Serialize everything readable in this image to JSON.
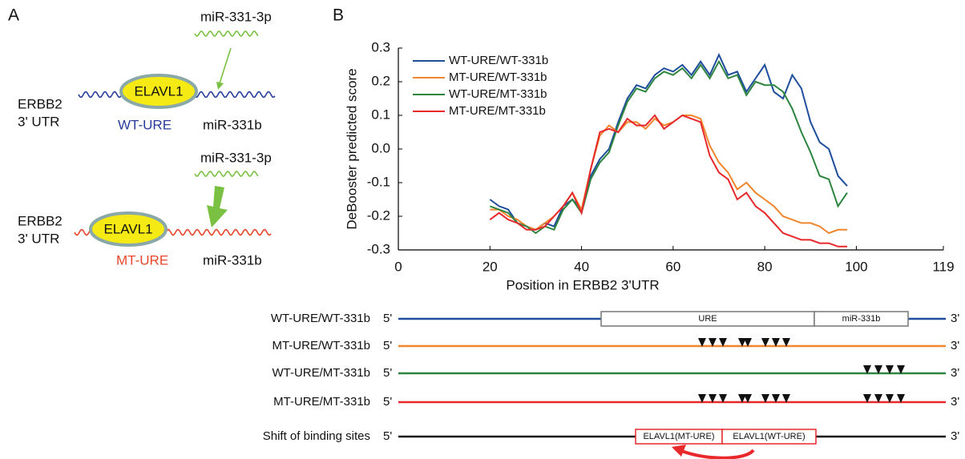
{
  "panel_a": {
    "label": "A",
    "diagrams": [
      {
        "mirna": "miR-331-3p",
        "gene": [
          "ERBB2",
          "3' UTR"
        ],
        "protein": "ELAVL1",
        "ure": "WT-URE",
        "site": "miR-331b"
      },
      {
        "mirna": "miR-331-3p",
        "gene": [
          "ERBB2",
          "3' UTR"
        ],
        "protein": "ELAVL1",
        "ure": "MT-URE",
        "site": "miR-331b"
      }
    ]
  },
  "panel_b": {
    "label": "B"
  },
  "chart_data": {
    "type": "line",
    "x_label": "Position in ERBB2 3'UTR",
    "y_label": "DeBooster predicted score",
    "xlim": [
      0,
      119
    ],
    "xticks": [
      0,
      20,
      40,
      60,
      80,
      100,
      119
    ],
    "ylim": [
      -0.3,
      0.3
    ],
    "yticks": [
      -0.3,
      -0.2,
      -0.1,
      {
        "value": 0,
        "label": "0.0"
      },
      0.1,
      0.2,
      0.3
    ],
    "legend": "upper left",
    "x": [
      20,
      22,
      24,
      26,
      28,
      30,
      32,
      34,
      36,
      38,
      40,
      42,
      44,
      46,
      48,
      50,
      52,
      54,
      56,
      58,
      60,
      62,
      64,
      66,
      68,
      70,
      72,
      74,
      76,
      78,
      80,
      82,
      84,
      86,
      88,
      90,
      92,
      94,
      96,
      98
    ],
    "series": [
      {
        "name": "WT-URE/WT-331b",
        "color": "#1f4e9c",
        "values": [
          -0.15,
          -0.17,
          -0.18,
          -0.22,
          -0.23,
          -0.24,
          -0.22,
          -0.23,
          -0.17,
          -0.15,
          -0.18,
          -0.08,
          -0.03,
          0.0,
          0.08,
          0.15,
          0.19,
          0.18,
          0.22,
          0.24,
          0.23,
          0.25,
          0.22,
          0.26,
          0.22,
          0.28,
          0.22,
          0.23,
          0.17,
          0.21,
          0.25,
          0.17,
          0.15,
          0.22,
          0.18,
          0.08,
          0.02,
          0.0,
          -0.08,
          -0.11
        ]
      },
      {
        "name": "MT-URE/WT-331b",
        "color": "#f0852d",
        "values": [
          -0.18,
          -0.18,
          -0.2,
          -0.21,
          -0.23,
          -0.24,
          -0.22,
          -0.2,
          -0.17,
          -0.13,
          -0.18,
          -0.06,
          0.04,
          0.07,
          0.05,
          0.08,
          0.08,
          0.06,
          0.09,
          0.07,
          0.08,
          0.1,
          0.1,
          0.09,
          0.01,
          -0.04,
          -0.07,
          -0.12,
          -0.1,
          -0.13,
          -0.15,
          -0.17,
          -0.2,
          -0.21,
          -0.22,
          -0.22,
          -0.23,
          -0.25,
          -0.24,
          -0.24
        ]
      },
      {
        "name": "WT-URE/MT-331b",
        "color": "#2e8540",
        "values": [
          -0.17,
          -0.18,
          -0.19,
          -0.22,
          -0.23,
          -0.25,
          -0.23,
          -0.24,
          -0.18,
          -0.15,
          -0.19,
          -0.09,
          -0.04,
          -0.01,
          0.07,
          0.14,
          0.18,
          0.17,
          0.21,
          0.23,
          0.22,
          0.24,
          0.21,
          0.25,
          0.21,
          0.26,
          0.21,
          0.22,
          0.16,
          0.2,
          0.19,
          0.19,
          0.17,
          0.12,
          0.05,
          -0.01,
          -0.08,
          -0.09,
          -0.17,
          -0.13
        ]
      },
      {
        "name": "MT-URE/MT-331b",
        "color": "#e8282b",
        "values": [
          -0.21,
          -0.19,
          -0.21,
          -0.22,
          -0.24,
          -0.24,
          -0.23,
          -0.2,
          -0.17,
          -0.13,
          -0.19,
          -0.06,
          0.05,
          0.06,
          0.05,
          0.09,
          0.07,
          0.07,
          0.1,
          0.06,
          0.08,
          0.1,
          0.09,
          0.08,
          -0.02,
          -0.07,
          -0.09,
          -0.15,
          -0.13,
          -0.17,
          -0.19,
          -0.22,
          -0.25,
          -0.26,
          -0.27,
          -0.27,
          -0.28,
          -0.28,
          -0.29,
          -0.29
        ]
      }
    ]
  },
  "tracks": {
    "rows": [
      {
        "name": "WT-URE/WT-331b",
        "start": "5'",
        "end": "3'",
        "boxes": [
          "URE",
          "miR-331b"
        ]
      },
      {
        "name": "MT-URE/WT-331b",
        "start": "5'",
        "end": "3'"
      },
      {
        "name": "WT-URE/MT-331b",
        "start": "5'",
        "end": "3'"
      },
      {
        "name": "MT-URE/MT-331b",
        "start": "5'",
        "end": "3'"
      },
      {
        "name": "Shift of binding sites",
        "start": "5'",
        "end": "3'",
        "boxes": [
          "ELAVL1(MT-URE)",
          "ELAVL1(WT-URE)"
        ]
      }
    ]
  }
}
